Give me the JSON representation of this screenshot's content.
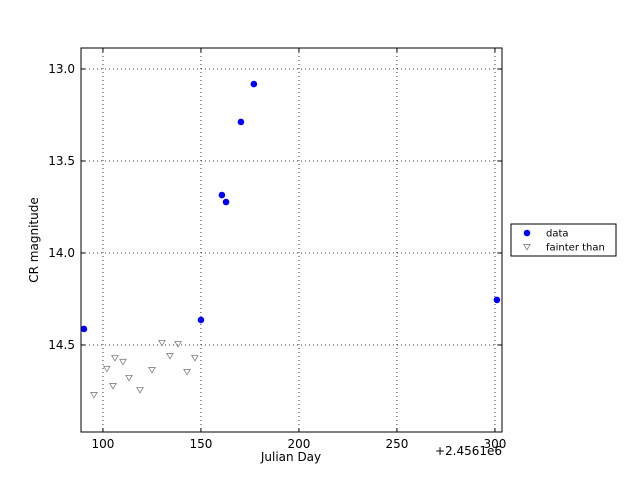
{
  "chart_data": {
    "type": "scatter",
    "x_label": "Julian Day",
    "y_label": "CR magnitude",
    "x_offset_label": "+2.4561e6",
    "xlim": [
      88.8,
      303.6
    ],
    "ylim": [
      12.886,
      14.973
    ],
    "y_inverted": true,
    "grid": true,
    "legend": "outside right",
    "xticks": [
      100,
      150,
      200,
      250,
      300
    ],
    "yticks": [
      {
        "value": 13.0,
        "label": "13.0"
      },
      {
        "value": 13.5,
        "label": "13.5"
      },
      {
        "value": 14.0,
        "label": "14.0"
      },
      {
        "value": 14.5,
        "label": "14.5"
      }
    ],
    "series": [
      {
        "name": "data",
        "color": "#0000ff",
        "marker": "circle",
        "x": [
          90.3,
          150.0,
          160.7,
          162.8,
          170.4,
          177.0,
          301.0
        ],
        "values": [
          14.413,
          14.364,
          13.685,
          13.723,
          13.288,
          13.082,
          14.255
        ]
      },
      {
        "name": "fainter than",
        "color": "#808080",
        "marker": "triangle-down",
        "x": [
          95.4,
          102.0,
          105.1,
          106.1,
          110.2,
          113.3,
          118.9,
          125.0,
          130.1,
          134.2,
          138.3,
          142.9,
          146.9
        ],
        "values": [
          14.772,
          14.63,
          14.723,
          14.571,
          14.592,
          14.679,
          14.745,
          14.636,
          14.489,
          14.56,
          14.495,
          14.647,
          14.571
        ]
      }
    ]
  }
}
